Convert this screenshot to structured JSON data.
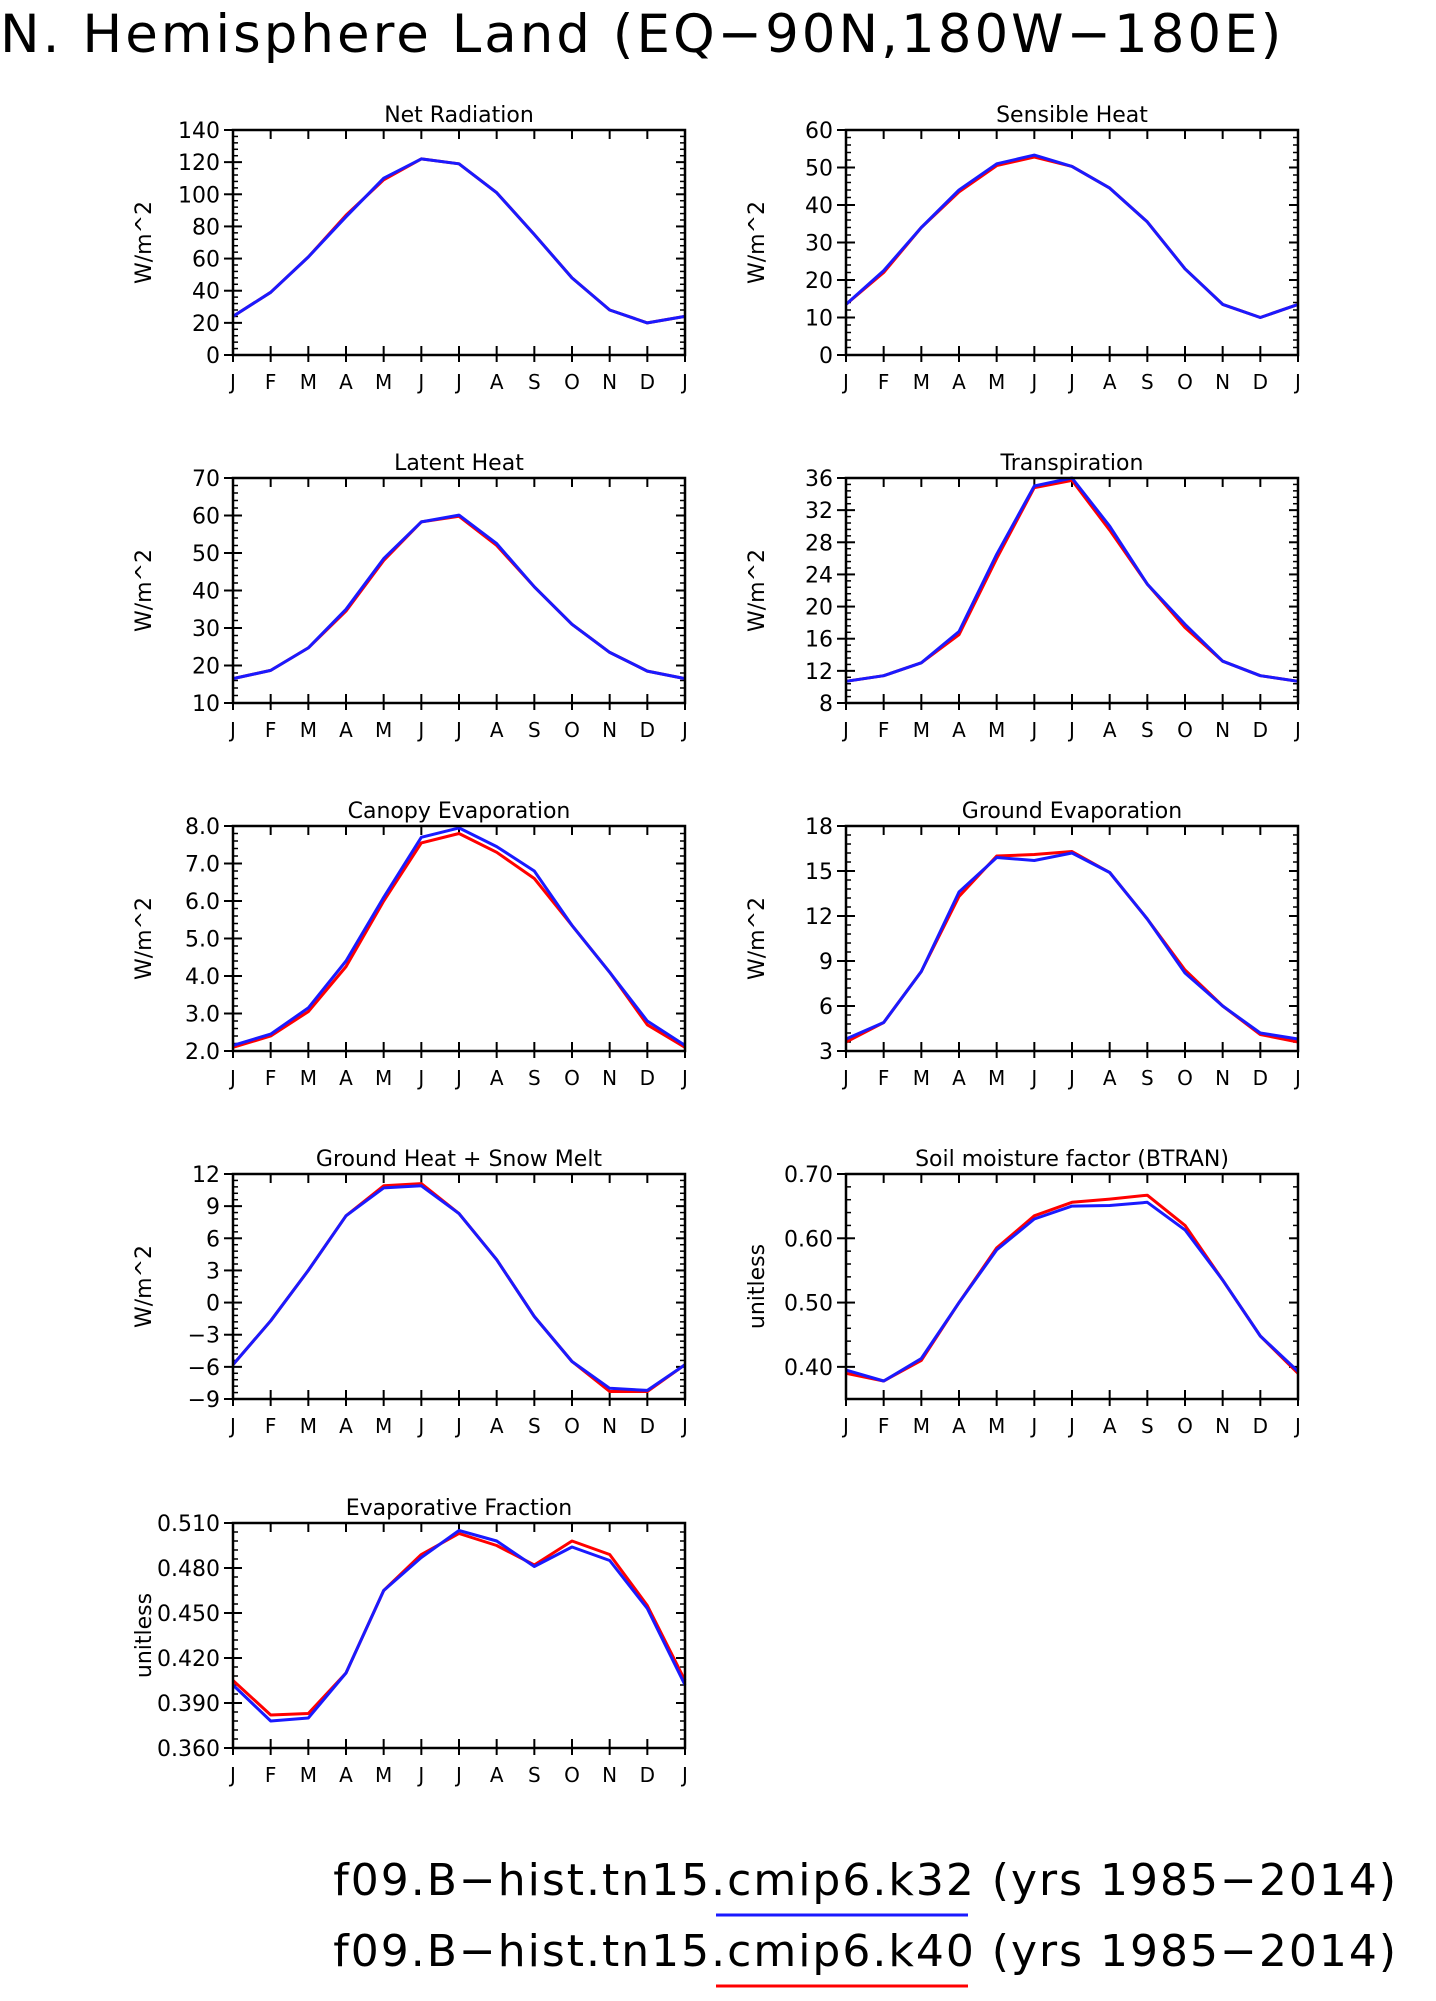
{
  "figure": {
    "title": "N. Hemisphere Land (EQ−90N,180W−180E)",
    "colors": {
      "k32": "#1a1aff",
      "k40": "#ff0000",
      "axis": "#000000",
      "background": "#ffffff"
    },
    "legend": [
      {
        "label": "f09.B−hist.tn15.cmip6.k32 (yrs 1985−2014)",
        "color": "#1a1aff"
      },
      {
        "label": "f09.B−hist.tn15.cmip6.k40 (yrs 1985−2014)",
        "color": "#ff0000"
      }
    ]
  },
  "chart_data": [
    {
      "type": "line",
      "title": "Net Radiation",
      "ylabel": "W/m^2",
      "x": [
        "J",
        "F",
        "M",
        "A",
        "M",
        "J",
        "J",
        "A",
        "S",
        "O",
        "N",
        "D",
        "J"
      ],
      "ylim": [
        0,
        140
      ],
      "yticks": [
        0,
        20,
        40,
        60,
        80,
        100,
        120,
        140
      ],
      "ytick_labels": [
        "0",
        "20",
        "40",
        "60",
        "80",
        "100",
        "120",
        "140"
      ],
      "series": [
        {
          "name": "f09.B−hist.tn15.cmip6.k40",
          "color": "#ff0000",
          "values": [
            24,
            39,
            61,
            87,
            109,
            122,
            119,
            101,
            75,
            48,
            28,
            20,
            24
          ]
        },
        {
          "name": "f09.B−hist.tn15.cmip6.k32",
          "color": "#1a1aff",
          "values": [
            24,
            39,
            61,
            86,
            110,
            122,
            119,
            101,
            75,
            48,
            28,
            20,
            24
          ]
        }
      ]
    },
    {
      "type": "line",
      "title": "Sensible Heat",
      "ylabel": "W/m^2",
      "x": [
        "J",
        "F",
        "M",
        "A",
        "M",
        "J",
        "J",
        "A",
        "S",
        "O",
        "N",
        "D",
        "J"
      ],
      "ylim": [
        0,
        60
      ],
      "yticks": [
        0,
        10,
        20,
        30,
        40,
        50,
        60
      ],
      "ytick_labels": [
        "0",
        "10",
        "20",
        "30",
        "40",
        "50",
        "60"
      ],
      "series": [
        {
          "name": "f09.B−hist.tn15.cmip6.k40",
          "color": "#ff0000",
          "values": [
            13.5,
            22,
            34,
            43.5,
            50.5,
            52.8,
            50.3,
            44.5,
            35.5,
            23,
            13.5,
            10,
            13.5
          ]
        },
        {
          "name": "f09.B−hist.tn15.cmip6.k32",
          "color": "#1a1aff",
          "values": [
            13.5,
            22.5,
            34,
            44,
            51,
            53.3,
            50.3,
            44.5,
            35.5,
            23,
            13.5,
            10,
            13.5
          ]
        }
      ]
    },
    {
      "type": "line",
      "title": "Latent Heat",
      "ylabel": "W/m^2",
      "x": [
        "J",
        "F",
        "M",
        "A",
        "M",
        "J",
        "J",
        "A",
        "S",
        "O",
        "N",
        "D",
        "J"
      ],
      "ylim": [
        10,
        70
      ],
      "yticks": [
        10,
        20,
        30,
        40,
        50,
        60,
        70
      ],
      "ytick_labels": [
        "10",
        "20",
        "30",
        "40",
        "50",
        "60",
        "70"
      ],
      "series": [
        {
          "name": "f09.B−hist.tn15.cmip6.k40",
          "color": "#ff0000",
          "values": [
            16.5,
            18.7,
            24.7,
            34.5,
            48,
            58.3,
            59.8,
            52,
            41,
            31,
            23.5,
            18.5,
            16.5
          ]
        },
        {
          "name": "f09.B−hist.tn15.cmip6.k32",
          "color": "#1a1aff",
          "values": [
            16.5,
            18.7,
            24.7,
            35,
            48.5,
            58.3,
            60.1,
            52.5,
            41,
            31,
            23.5,
            18.5,
            16.5
          ]
        }
      ]
    },
    {
      "type": "line",
      "title": "Transpiration",
      "ylabel": "W/m^2",
      "x": [
        "J",
        "F",
        "M",
        "A",
        "M",
        "J",
        "J",
        "A",
        "S",
        "O",
        "N",
        "D",
        "J"
      ],
      "ylim": [
        8,
        36
      ],
      "yticks": [
        8,
        12,
        16,
        20,
        24,
        28,
        32,
        36
      ],
      "ytick_labels": [
        "8",
        "12",
        "16",
        "20",
        "24",
        "28",
        "32",
        "36"
      ],
      "series": [
        {
          "name": "f09.B−hist.tn15.cmip6.k40",
          "color": "#ff0000",
          "values": [
            10.7,
            11.4,
            13,
            16.5,
            26,
            34.8,
            35.7,
            29.5,
            22.8,
            17.4,
            13.2,
            11.4,
            10.7
          ]
        },
        {
          "name": "f09.B−hist.tn15.cmip6.k32",
          "color": "#1a1aff",
          "values": [
            10.7,
            11.4,
            13,
            16.9,
            26.5,
            35,
            36,
            30,
            22.8,
            17.8,
            13.2,
            11.4,
            10.7
          ]
        }
      ]
    },
    {
      "type": "line",
      "title": "Canopy Evaporation",
      "ylabel": "W/m^2",
      "x": [
        "J",
        "F",
        "M",
        "A",
        "M",
        "J",
        "J",
        "A",
        "S",
        "O",
        "N",
        "D",
        "J"
      ],
      "ylim": [
        2,
        8
      ],
      "yticks": [
        2,
        3,
        4,
        5,
        6,
        7,
        8
      ],
      "ytick_labels": [
        "2.0",
        "3.0",
        "4.0",
        "5.0",
        "6.0",
        "7.0",
        "8.0"
      ],
      "series": [
        {
          "name": "f09.B−hist.tn15.cmip6.k40",
          "color": "#ff0000",
          "values": [
            2.1,
            2.4,
            3.05,
            4.25,
            6.0,
            7.55,
            7.8,
            7.3,
            6.6,
            5.35,
            4.1,
            2.7,
            2.1
          ]
        },
        {
          "name": "f09.B−hist.tn15.cmip6.k32",
          "color": "#1a1aff",
          "values": [
            2.15,
            2.45,
            3.15,
            4.4,
            6.1,
            7.7,
            7.95,
            7.45,
            6.8,
            5.35,
            4.1,
            2.8,
            2.15
          ]
        }
      ]
    },
    {
      "type": "line",
      "title": "Ground Evaporation",
      "ylabel": "W/m^2",
      "x": [
        "J",
        "F",
        "M",
        "A",
        "M",
        "J",
        "J",
        "A",
        "S",
        "O",
        "N",
        "D",
        "J"
      ],
      "ylim": [
        3,
        18
      ],
      "yticks": [
        3,
        6,
        9,
        12,
        15,
        18
      ],
      "ytick_labels": [
        "3",
        "6",
        "9",
        "12",
        "15",
        "18"
      ],
      "series": [
        {
          "name": "f09.B−hist.tn15.cmip6.k40",
          "color": "#ff0000",
          "values": [
            3.6,
            4.9,
            8.3,
            13.3,
            16.0,
            16.1,
            16.3,
            14.9,
            11.8,
            8.4,
            6.0,
            4.1,
            3.6
          ]
        },
        {
          "name": "f09.B−hist.tn15.cmip6.k32",
          "color": "#1a1aff",
          "values": [
            3.8,
            4.9,
            8.3,
            13.6,
            15.9,
            15.7,
            16.2,
            14.9,
            11.8,
            8.2,
            6.0,
            4.2,
            3.8
          ]
        }
      ]
    },
    {
      "type": "line",
      "title": "Ground Heat + Snow Melt",
      "ylabel": "W/m^2",
      "x": [
        "J",
        "F",
        "M",
        "A",
        "M",
        "J",
        "J",
        "A",
        "S",
        "O",
        "N",
        "D",
        "J"
      ],
      "ylim": [
        -9,
        12
      ],
      "yticks": [
        -9,
        -6,
        -3,
        0,
        3,
        6,
        9,
        12
      ],
      "ytick_labels": [
        "−9",
        "−6",
        "−3",
        "0",
        "3",
        "6",
        "9",
        "12"
      ],
      "series": [
        {
          "name": "f09.B−hist.tn15.cmip6.k40",
          "color": "#ff0000",
          "values": [
            -5.8,
            -1.7,
            3.0,
            8.1,
            10.9,
            11.1,
            8.3,
            4.0,
            -1.3,
            -5.5,
            -8.3,
            -8.3,
            -5.8
          ]
        },
        {
          "name": "f09.B−hist.tn15.cmip6.k32",
          "color": "#1a1aff",
          "values": [
            -5.8,
            -1.7,
            3.0,
            8.1,
            10.7,
            10.9,
            8.3,
            4.0,
            -1.3,
            -5.5,
            -8.0,
            -8.2,
            -5.8
          ]
        }
      ]
    },
    {
      "type": "line",
      "title": "Soil moisture factor (BTRAN)",
      "ylabel": "unitless",
      "x": [
        "J",
        "F",
        "M",
        "A",
        "M",
        "J",
        "J",
        "A",
        "S",
        "O",
        "N",
        "D",
        "J"
      ],
      "ylim": [
        0.35,
        0.7
      ],
      "yticks": [
        0.4,
        0.5,
        0.6,
        0.7
      ],
      "ytick_labels": [
        "0.40",
        "0.50",
        "0.60",
        "0.70"
      ],
      "series": [
        {
          "name": "f09.B−hist.tn15.cmip6.k40",
          "color": "#ff0000",
          "values": [
            0.39,
            0.378,
            0.41,
            0.5,
            0.585,
            0.635,
            0.656,
            0.661,
            0.667,
            0.62,
            0.535,
            0.448,
            0.39
          ]
        },
        {
          "name": "f09.B−hist.tn15.cmip6.k32",
          "color": "#1a1aff",
          "values": [
            0.395,
            0.378,
            0.413,
            0.5,
            0.582,
            0.63,
            0.65,
            0.651,
            0.656,
            0.613,
            0.535,
            0.448,
            0.393
          ]
        }
      ]
    },
    {
      "type": "line",
      "title": "Evaporative Fraction",
      "ylabel": "unitless",
      "x": [
        "J",
        "F",
        "M",
        "A",
        "M",
        "J",
        "J",
        "A",
        "S",
        "O",
        "N",
        "D",
        "J"
      ],
      "ylim": [
        0.36,
        0.51
      ],
      "yticks": [
        0.36,
        0.39,
        0.42,
        0.45,
        0.48,
        0.51
      ],
      "ytick_labels": [
        "0.360",
        "0.390",
        "0.420",
        "0.450",
        "0.480",
        "0.510"
      ],
      "series": [
        {
          "name": "f09.B−hist.tn15.cmip6.k40",
          "color": "#ff0000",
          "values": [
            0.405,
            0.382,
            0.383,
            0.41,
            0.465,
            0.489,
            0.503,
            0.495,
            0.482,
            0.498,
            0.489,
            0.455,
            0.405
          ]
        },
        {
          "name": "f09.B−hist.tn15.cmip6.k32",
          "color": "#1a1aff",
          "values": [
            0.402,
            0.378,
            0.38,
            0.41,
            0.465,
            0.487,
            0.505,
            0.498,
            0.481,
            0.494,
            0.485,
            0.453,
            0.402
          ]
        }
      ]
    }
  ]
}
